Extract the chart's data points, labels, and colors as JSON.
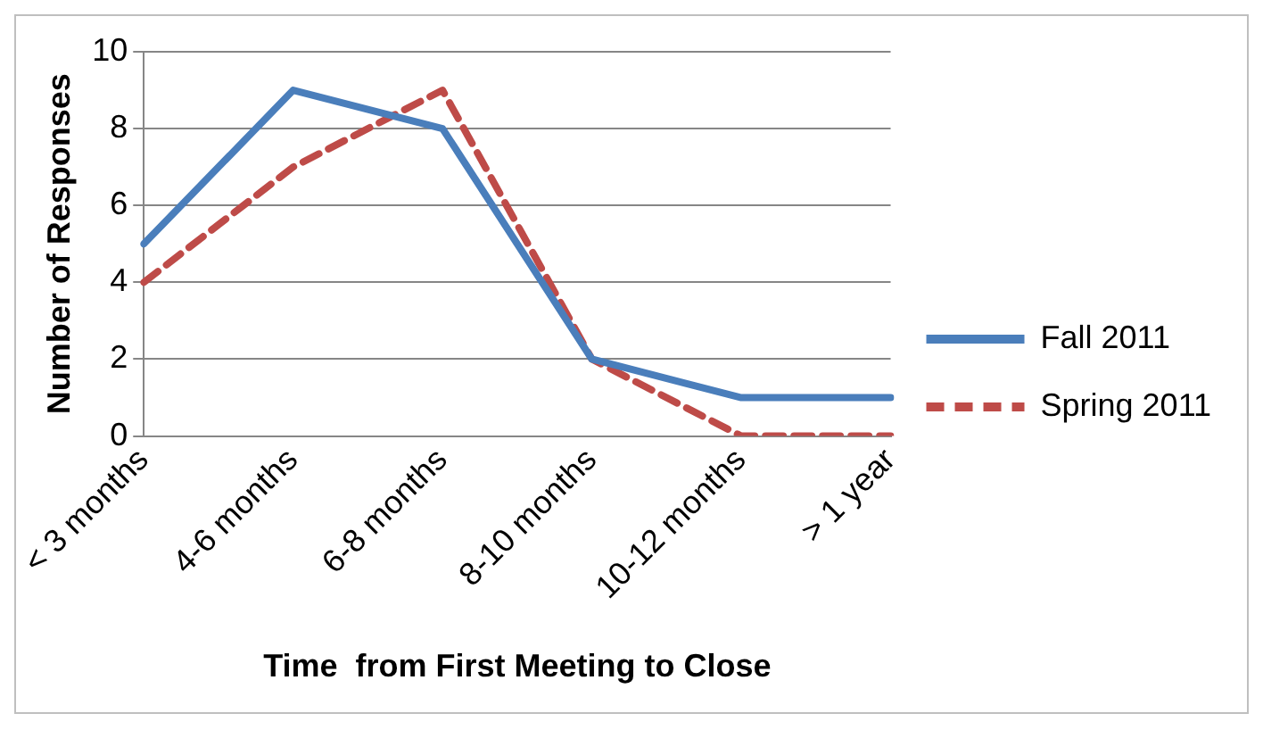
{
  "chart_data": {
    "type": "line",
    "xlabel": "Time  from First Meeting to Close",
    "ylabel": "Number of Responses",
    "categories": [
      "< 3 months",
      "4-6 months",
      "6-8 months",
      "8-10 months",
      "10-12 months",
      "> 1 year"
    ],
    "series": [
      {
        "name": "Fall 2011",
        "color": "#4a7ebb",
        "values": [
          5,
          9,
          8,
          2,
          1,
          1
        ],
        "line_style": "solid"
      },
      {
        "name": "Spring 2011",
        "color": "#be4b48",
        "values": [
          4,
          7,
          9,
          2,
          0,
          0
        ],
        "line_style": "dashed"
      }
    ],
    "ylim": [
      0,
      10
    ],
    "yticks": [
      0,
      2,
      4,
      6,
      8,
      10
    ],
    "grid": "y",
    "legend": "right",
    "marker": "none"
  }
}
